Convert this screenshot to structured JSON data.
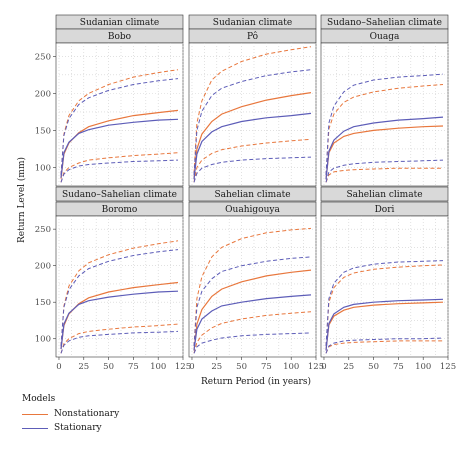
{
  "chart_data": {
    "type": "line",
    "ylabel": "Return Level (mm)",
    "xlabel": "Return Period (in years)",
    "xlim": [
      -3,
      125
    ],
    "ylim": [
      75,
      268
    ],
    "x_ticks": [
      0,
      25,
      50,
      75,
      100,
      125
    ],
    "y_ticks": [
      100,
      150,
      200,
      250
    ],
    "grid": true,
    "legend": {
      "title": "Models",
      "position": "bottom-left",
      "entries": [
        {
          "name": "Nonstationary",
          "color": "#e8773d"
        },
        {
          "name": "Stationary",
          "color": "#5d5db8"
        }
      ]
    },
    "colors": {
      "Nonstationary": "#e8773d",
      "Stationary": "#5d5db8"
    },
    "x": [
      2,
      5,
      10,
      20,
      30,
      50,
      75,
      100,
      120
    ],
    "panels": [
      {
        "climate": "Sudanian climate",
        "station": "Bobo",
        "series": [
          {
            "model": "Nonstationary",
            "kind": "estimate",
            "values": [
              85,
              118,
              133,
              147,
              155,
              163,
              170,
              174,
              177
            ]
          },
          {
            "model": "Nonstationary",
            "kind": "upper_ci",
            "values": [
              90,
              145,
              170,
              190,
              200,
              212,
              222,
              228,
              232
            ]
          },
          {
            "model": "Nonstationary",
            "kind": "lower_ci",
            "values": [
              80,
              93,
              100,
              106,
              110,
              113,
              116,
              118,
              120
            ]
          },
          {
            "model": "Stationary",
            "kind": "estimate",
            "values": [
              86,
              120,
              134,
              146,
              151,
              157,
              161,
              164,
              165
            ]
          },
          {
            "model": "Stationary",
            "kind": "upper_ci",
            "values": [
              90,
              143,
              166,
              185,
              194,
              204,
              212,
              217,
              220
            ]
          },
          {
            "model": "Stationary",
            "kind": "lower_ci",
            "values": [
              80,
              91,
              97,
              102,
              104,
              106,
              108,
              109,
              110
            ]
          }
        ]
      },
      {
        "climate": "Sudanian climate",
        "station": "Pô",
        "series": [
          {
            "model": "Nonstationary",
            "kind": "estimate",
            "values": [
              85,
              125,
              145,
              162,
              172,
              182,
              191,
              197,
              201
            ]
          },
          {
            "model": "Nonstationary",
            "kind": "upper_ci",
            "values": [
              92,
              160,
              190,
              218,
              230,
              243,
              253,
              259,
              263
            ]
          },
          {
            "model": "Nonstationary",
            "kind": "lower_ci",
            "values": [
              80,
              100,
              110,
              119,
              124,
              129,
              133,
              136,
              138
            ]
          },
          {
            "model": "Stationary",
            "kind": "estimate",
            "values": [
              84,
              118,
              135,
              148,
              155,
              162,
              167,
              170,
              173
            ]
          },
          {
            "model": "Stationary",
            "kind": "upper_ci",
            "values": [
              90,
              150,
              176,
              197,
              207,
              216,
              224,
              229,
              232
            ]
          },
          {
            "model": "Stationary",
            "kind": "lower_ci",
            "values": [
              80,
              92,
              99,
              104,
              107,
              110,
              112,
              113,
              114
            ]
          }
        ]
      },
      {
        "climate": "Sudano–Sahelian climate",
        "station": "Ouaga",
        "series": [
          {
            "model": "Nonstationary",
            "kind": "estimate",
            "values": [
              84,
              120,
              133,
              142,
              146,
              150,
              153,
              155,
              156
            ]
          },
          {
            "model": "Nonstationary",
            "kind": "upper_ci",
            "values": [
              90,
              152,
              172,
              188,
              195,
              202,
              207,
              210,
              212
            ]
          },
          {
            "model": "Nonstationary",
            "kind": "lower_ci",
            "values": [
              80,
              90,
              94,
              96,
              97,
              98,
              99,
              99,
              99
            ]
          },
          {
            "model": "Stationary",
            "kind": "estimate",
            "values": [
              84,
              122,
              137,
              149,
              155,
              160,
              164,
              166,
              168
            ]
          },
          {
            "model": "Stationary",
            "kind": "upper_ci",
            "values": [
              90,
              160,
              183,
              202,
              211,
              218,
              222,
              224,
              226
            ]
          },
          {
            "model": "Stationary",
            "kind": "lower_ci",
            "values": [
              80,
              94,
              99,
              103,
              105,
              107,
              108,
              109,
              110
            ]
          }
        ]
      },
      {
        "climate": "Sudano–Sahelian climate",
        "station": "Boromo",
        "series": [
          {
            "model": "Nonstationary",
            "kind": "estimate",
            "values": [
              86,
              118,
              134,
              148,
              156,
              164,
              170,
              174,
              177
            ]
          },
          {
            "model": "Nonstationary",
            "kind": "upper_ci",
            "values": [
              90,
              145,
              172,
              193,
              204,
              215,
              224,
              230,
              234
            ]
          },
          {
            "model": "Nonstationary",
            "kind": "lower_ci",
            "values": [
              80,
              93,
              100,
              107,
              110,
              113,
              116,
              118,
              120
            ]
          },
          {
            "model": "Stationary",
            "kind": "estimate",
            "values": [
              86,
              120,
              135,
              147,
              152,
              157,
              161,
              164,
              165
            ]
          },
          {
            "model": "Stationary",
            "kind": "upper_ci",
            "values": [
              90,
              143,
              167,
              186,
              196,
              206,
              214,
              219,
              222
            ]
          },
          {
            "model": "Stationary",
            "kind": "lower_ci",
            "values": [
              80,
              91,
              97,
              102,
              104,
              106,
              108,
              109,
              110
            ]
          }
        ]
      },
      {
        "climate": "Sahelian climate",
        "station": "Ouahigouya",
        "series": [
          {
            "model": "Nonstationary",
            "kind": "estimate",
            "values": [
              84,
              120,
              140,
              158,
              168,
              178,
              186,
              191,
              194
            ]
          },
          {
            "model": "Nonstationary",
            "kind": "upper_ci",
            "values": [
              90,
              155,
              185,
              212,
              225,
              237,
              245,
              249,
              251
            ]
          },
          {
            "model": "Nonstationary",
            "kind": "lower_ci",
            "values": [
              80,
              95,
              105,
              115,
              121,
              127,
              132,
              135,
              137
            ]
          },
          {
            "model": "Stationary",
            "kind": "estimate",
            "values": [
              84,
              113,
              127,
              138,
              145,
              150,
              155,
              158,
              160
            ]
          },
          {
            "model": "Stationary",
            "kind": "upper_ci",
            "values": [
              90,
              143,
              165,
              182,
              192,
              200,
              206,
              210,
              212
            ]
          },
          {
            "model": "Stationary",
            "kind": "lower_ci",
            "values": [
              80,
              89,
              94,
              98,
              101,
              104,
              106,
              107,
              108
            ]
          }
        ]
      },
      {
        "climate": "Sahelian climate",
        "station": "Dori",
        "series": [
          {
            "model": "Nonstationary",
            "kind": "estimate",
            "values": [
              84,
              119,
              131,
              139,
              143,
              146,
              148,
              149,
              150
            ]
          },
          {
            "model": "Nonstationary",
            "kind": "upper_ci",
            "values": [
              90,
              150,
              170,
              184,
              190,
              195,
              198,
              200,
              201
            ]
          },
          {
            "model": "Nonstationary",
            "kind": "lower_ci",
            "values": [
              80,
              89,
              92,
              94,
              95,
              96,
              97,
              97,
              97
            ]
          },
          {
            "model": "Stationary",
            "kind": "estimate",
            "values": [
              84,
              121,
              134,
              143,
              147,
              150,
              152,
              153,
              154
            ]
          },
          {
            "model": "Stationary",
            "kind": "upper_ci",
            "values": [
              90,
              155,
              176,
              191,
              197,
              202,
              205,
              206,
              207
            ]
          },
          {
            "model": "Stationary",
            "kind": "lower_ci",
            "values": [
              80,
              90,
              94,
              97,
              98,
              99,
              100,
              100,
              101
            ]
          }
        ]
      }
    ]
  }
}
